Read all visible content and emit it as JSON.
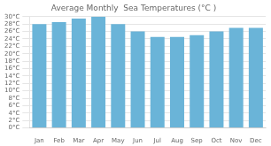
{
  "chart_data": {
    "type": "bar",
    "title": "Average Monthly  Sea Temperatures (°C )",
    "categories": [
      "Jan",
      "Feb",
      "Mar",
      "Apr",
      "May",
      "Jun",
      "Jul",
      "Aug",
      "Sep",
      "Oct",
      "Nov",
      "Dec"
    ],
    "values": [
      28,
      28.5,
      29.5,
      30,
      28,
      26,
      24.5,
      24.5,
      25,
      26,
      27,
      27
    ],
    "color": "#6ab4d8",
    "ylim": [
      0,
      30
    ],
    "yticks": [
      {
        "value": 0,
        "label": "0°C"
      },
      {
        "value": 2,
        "label": "2°C"
      },
      {
        "value": 4,
        "label": "4°C"
      },
      {
        "value": 6,
        "label": "6°C"
      },
      {
        "value": 8,
        "label": "8°C"
      },
      {
        "value": 10,
        "label": "10°C"
      },
      {
        "value": 12,
        "label": "12°C"
      },
      {
        "value": 14,
        "label": "14°C"
      },
      {
        "value": 16,
        "label": "16°C"
      },
      {
        "value": 18,
        "label": "18°C"
      },
      {
        "value": 20,
        "label": "20°C"
      },
      {
        "value": 22,
        "label": "22°C"
      },
      {
        "value": 24,
        "label": "24°C"
      },
      {
        "value": 26,
        "label": "26°C"
      },
      {
        "value": 28,
        "label": "28°C"
      },
      {
        "value": 30,
        "label": "30°C"
      }
    ],
    "grid": true
  }
}
